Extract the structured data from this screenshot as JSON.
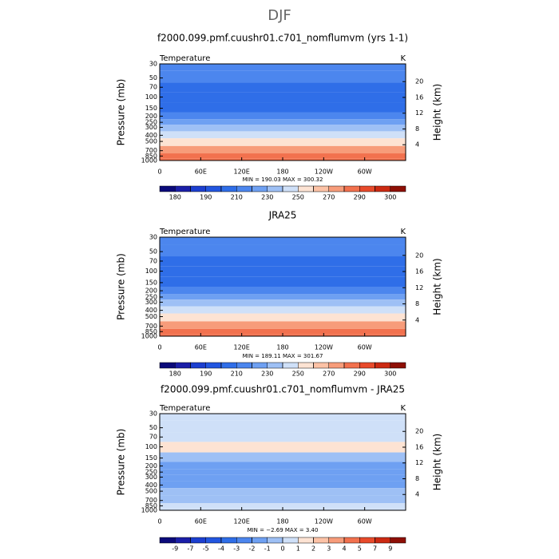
{
  "figure_title": "DJF",
  "chart_data": [
    {
      "type": "contour",
      "title": "f2000.099.pmf.cuushr01.c701_nomflumvm (yrs 1-1)",
      "left_label": "Temperature",
      "right_label": "K",
      "ylabel": "Pressure (mb)",
      "y2label": "Height (km)",
      "xlim": [
        0,
        360
      ],
      "xticks": [
        0,
        {
          "value": 60,
          "label": "60E"
        },
        {
          "value": 120,
          "label": "120E"
        },
        180,
        {
          "value": 240,
          "label": "120W"
        },
        {
          "value": 300,
          "label": "60W"
        }
      ],
      "ylim": [
        1000,
        30
      ],
      "ylog": true,
      "yticks": [
        30,
        50,
        70,
        100,
        150,
        200,
        250,
        300,
        400,
        500,
        700,
        850,
        1000
      ],
      "y2lim": [
        0,
        24.5
      ],
      "y2ticks": [
        4,
        8,
        12,
        16,
        20
      ],
      "stats": "MIN = 190.03   MAX = 300.32",
      "profile": {
        "pressure": [
          30,
          50,
          70,
          100,
          150,
          200,
          250,
          300,
          400,
          500,
          700,
          850,
          1000
        ],
        "values": [
          215,
          210,
          205,
          200,
          205,
          215,
          225,
          232,
          245,
          255,
          270,
          280,
          288
        ]
      },
      "colorbar": {
        "levels": [
          180,
          185,
          190,
          200,
          210,
          220,
          230,
          240,
          250,
          260,
          270,
          280,
          290,
          295,
          300
        ],
        "label_step": 2,
        "colors": [
          "#0b0a7a",
          "#1b1fa8",
          "#1c3fd0",
          "#2256e0",
          "#2f6ee8",
          "#4c86ee",
          "#6ea0f2",
          "#9ec0f5",
          "#cfe0f8",
          "#fde3d3",
          "#fcc2a6",
          "#f79c7a",
          "#f2714e",
          "#e84a2b",
          "#cc2a12",
          "#8e0f05"
        ]
      }
    },
    {
      "type": "contour",
      "title": "JRA25",
      "left_label": "Temperature",
      "right_label": "K",
      "ylabel": "Pressure (mb)",
      "y2label": "Height (km)",
      "xlim": [
        0,
        360
      ],
      "xticks": [
        0,
        {
          "value": 60,
          "label": "60E"
        },
        {
          "value": 120,
          "label": "120E"
        },
        180,
        {
          "value": 240,
          "label": "120W"
        },
        {
          "value": 300,
          "label": "60W"
        }
      ],
      "ylim": [
        1000,
        30
      ],
      "ylog": true,
      "yticks": [
        30,
        50,
        70,
        100,
        150,
        200,
        250,
        300,
        400,
        500,
        700,
        850,
        1000
      ],
      "y2lim": [
        0,
        24.5
      ],
      "y2ticks": [
        4,
        8,
        12,
        16,
        20
      ],
      "stats": "MIN = 189.11   MAX = 301.67",
      "profile": {
        "pressure": [
          30,
          50,
          70,
          100,
          150,
          200,
          250,
          300,
          400,
          500,
          700,
          850,
          1000
        ],
        "values": [
          215,
          210,
          205,
          200,
          205,
          215,
          225,
          232,
          245,
          255,
          270,
          280,
          288
        ]
      },
      "colorbar": {
        "levels": [
          180,
          185,
          190,
          200,
          210,
          220,
          230,
          240,
          250,
          260,
          270,
          280,
          290,
          295,
          300
        ],
        "label_step": 2,
        "colors": [
          "#0b0a7a",
          "#1b1fa8",
          "#1c3fd0",
          "#2256e0",
          "#2f6ee8",
          "#4c86ee",
          "#6ea0f2",
          "#9ec0f5",
          "#cfe0f8",
          "#fde3d3",
          "#fcc2a6",
          "#f79c7a",
          "#f2714e",
          "#e84a2b",
          "#cc2a12",
          "#8e0f05"
        ]
      }
    },
    {
      "type": "contour",
      "title": "f2000.099.pmf.cuushr01.c701_nomflumvm - JRA25",
      "left_label": "Temperature",
      "right_label": "K",
      "ylabel": "Pressure (mb)",
      "y2label": "Height (km)",
      "xlim": [
        0,
        360
      ],
      "xticks": [
        0,
        {
          "value": 60,
          "label": "60E"
        },
        {
          "value": 120,
          "label": "120E"
        },
        180,
        {
          "value": 240,
          "label": "120W"
        },
        {
          "value": 300,
          "label": "60W"
        }
      ],
      "ylim": [
        1000,
        30
      ],
      "ylog": true,
      "yticks": [
        30,
        50,
        70,
        100,
        150,
        200,
        250,
        300,
        400,
        500,
        700,
        850,
        1000
      ],
      "y2lim": [
        0,
        24.5
      ],
      "y2ticks": [
        4,
        8,
        12,
        16,
        20
      ],
      "stats": "MIN = −2.69   MAX = 3.40",
      "profile": {
        "pressure": [
          30,
          50,
          70,
          100,
          150,
          200,
          250,
          300,
          400,
          500,
          700,
          850,
          1000
        ],
        "values": [
          0.5,
          0.5,
          0.8,
          1,
          -0.5,
          -1.5,
          -1.5,
          -1.5,
          -1.2,
          -0.8,
          -0.5,
          0.5,
          0.5
        ]
      },
      "colorbar": {
        "levels": [
          -9,
          -7,
          -5,
          -4,
          -3,
          -2,
          -1,
          0,
          1,
          2,
          3,
          4,
          5,
          7,
          9
        ],
        "label_step": 1,
        "colors": [
          "#0b0a7a",
          "#1b1fa8",
          "#1c3fd0",
          "#2256e0",
          "#2f6ee8",
          "#4c86ee",
          "#6ea0f2",
          "#9ec0f5",
          "#cfe0f8",
          "#fde3d3",
          "#fcc2a6",
          "#f79c7a",
          "#f2714e",
          "#e84a2b",
          "#cc2a12",
          "#8e0f05"
        ]
      }
    }
  ]
}
